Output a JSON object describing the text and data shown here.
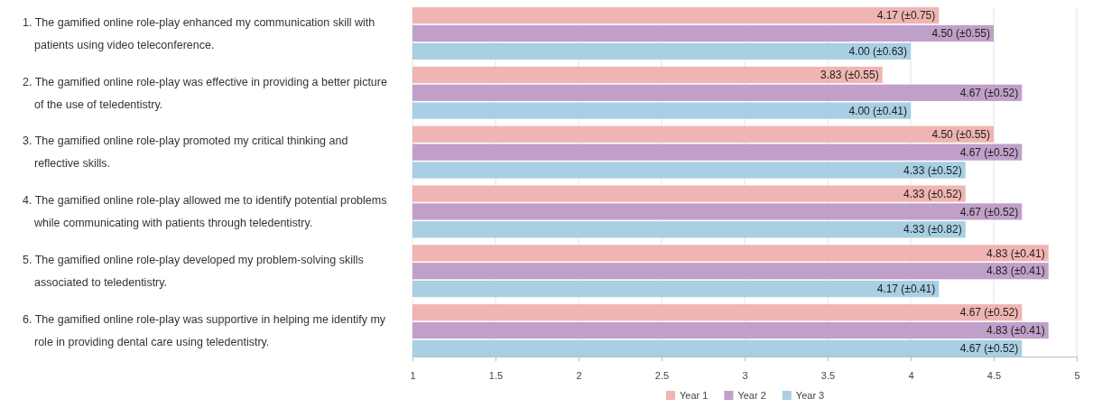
{
  "chart_data": {
    "type": "bar",
    "orientation": "horizontal",
    "categories": [
      "1. The gamified online role-play enhanced my communication skill with patients using video teleconference.",
      "2. The gamified online role-play was effective in providing a better picture of the use of teledentistry.",
      "3. The gamified online role-play promoted my critical thinking and reflective skills.",
      "4. The gamified online role-play allowed me to identify potential problems while communicating with patients through teledentistry.",
      "5. The gamified online role-play developed my problem-solving skills associated to teledentistry.",
      "6. The gamified online role-play was supportive in helping me identify my role in providing dental care using teledentistry."
    ],
    "series": [
      {
        "name": "Year 1",
        "color": "#f0b5b2",
        "values": [
          4.17,
          3.83,
          4.5,
          4.33,
          4.83,
          4.67
        ],
        "value_labels": [
          "4.17 (±0.75)",
          "3.83 (±0.55)",
          "4.50 (±0.55)",
          "4.33 (±0.52)",
          "4.83 (±0.41)",
          "4.67 (±0.52)"
        ]
      },
      {
        "name": "Year 2",
        "color": "#c0a0c8",
        "values": [
          4.5,
          4.67,
          4.67,
          4.67,
          4.83,
          4.83
        ],
        "value_labels": [
          "4.50 (±0.55)",
          "4.67 (±0.52)",
          "4.67 (±0.52)",
          "4.67 (±0.52)",
          "4.83 (±0.41)",
          "4.83 (±0.41)"
        ]
      },
      {
        "name": "Year 3",
        "color": "#a8cfe3",
        "values": [
          4.0,
          4.0,
          4.33,
          4.33,
          4.17,
          4.67
        ],
        "value_labels": [
          "4.00 (±0.63)",
          "4.00 (±0.41)",
          "4.33 (±0.52)",
          "4.33 (±0.82)",
          "4.17 (±0.41)",
          "4.67 (±0.52)"
        ]
      }
    ],
    "xlim": [
      1,
      5
    ],
    "xticks": [
      1,
      1.5,
      2,
      2.5,
      3,
      3.5,
      4,
      4.5,
      5
    ],
    "grid": "x",
    "legend": "bottom"
  }
}
